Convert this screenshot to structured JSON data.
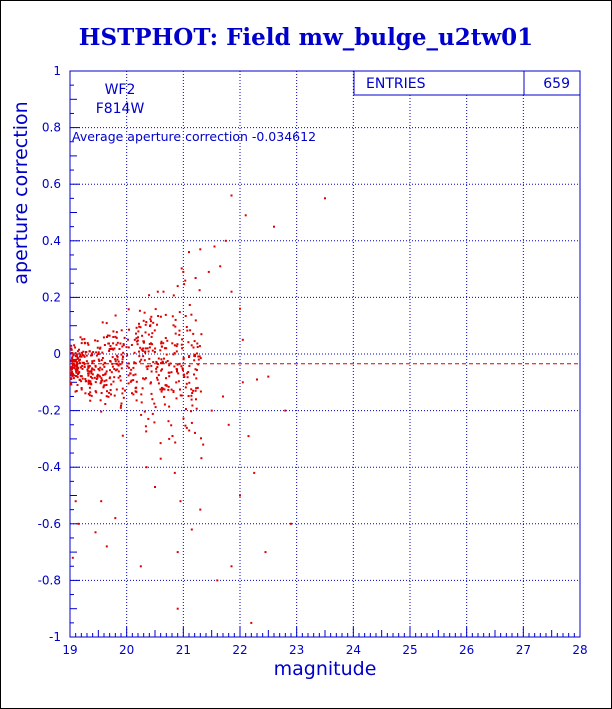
{
  "chart_data": {
    "type": "scatter",
    "title": "HSTPHOT: Field mw_bulge_u2tw01",
    "xlabel": "magnitude",
    "ylabel": "aperture correction",
    "xlim": [
      19,
      28
    ],
    "ylim": [
      -1,
      1
    ],
    "xticks": [
      "19",
      "20",
      "21",
      "22",
      "23",
      "24",
      "25",
      "26",
      "27",
      "28"
    ],
    "yticks": [
      "-1",
      "-0.8",
      "-0.6",
      "-0.4",
      "-0.2",
      "0",
      "0.2",
      "0.4",
      "0.6",
      "0.8",
      "1"
    ],
    "grid": true,
    "reference_line": {
      "y": -0.034612,
      "style": "dashed"
    },
    "annotations": {
      "chip": "WF2",
      "filter": "F814W",
      "average": "Average aperture correction -0.034612"
    },
    "stats_box": {
      "label": "ENTRIES",
      "value": "659"
    },
    "series": [
      {
        "color": "#dd0000",
        "points": [
          [
            21.85,
            0.56
          ],
          [
            23.5,
            0.55
          ],
          [
            22.6,
            0.45
          ],
          [
            22.1,
            0.49
          ],
          [
            21.3,
            0.37
          ],
          [
            21.55,
            0.38
          ],
          [
            21.75,
            0.4
          ],
          [
            21.1,
            0.36
          ],
          [
            21.65,
            0.31
          ],
          [
            21.45,
            0.29
          ],
          [
            21.0,
            0.29
          ],
          [
            20.9,
            0.24
          ],
          [
            20.55,
            0.22
          ],
          [
            20.65,
            0.22
          ],
          [
            21.85,
            0.22
          ],
          [
            22.0,
            0.16
          ],
          [
            22.05,
            0.05
          ],
          [
            22.05,
            -0.1
          ],
          [
            22.5,
            -0.08
          ],
          [
            22.3,
            -0.09
          ],
          [
            22.8,
            -0.2
          ],
          [
            22.15,
            -0.29
          ],
          [
            22.25,
            -0.42
          ],
          [
            22.0,
            -0.5
          ],
          [
            22.9,
            -0.6
          ],
          [
            22.45,
            -0.7
          ],
          [
            22.2,
            -0.95
          ],
          [
            21.85,
            -0.75
          ],
          [
            21.6,
            -0.8
          ],
          [
            21.15,
            -0.62
          ],
          [
            20.95,
            -0.52
          ],
          [
            20.9,
            -0.9
          ],
          [
            20.9,
            -0.7
          ],
          [
            20.5,
            -0.47
          ],
          [
            19.8,
            -0.58
          ],
          [
            19.55,
            -0.52
          ],
          [
            19.45,
            -0.63
          ],
          [
            19.65,
            -0.68
          ],
          [
            19.05,
            -0.72
          ],
          [
            20.25,
            -0.75
          ],
          [
            19.15,
            -0.6
          ],
          [
            19.1,
            -0.52
          ],
          [
            21.3,
            -0.55
          ],
          [
            21.35,
            -0.32
          ],
          [
            20.85,
            -0.42
          ],
          [
            20.6,
            -0.37
          ],
          [
            20.35,
            -0.4
          ],
          [
            20.75,
            -0.3
          ],
          [
            21.5,
            -0.2
          ],
          [
            21.7,
            -0.15
          ],
          [
            21.8,
            -0.25
          ]
        ]
      }
    ]
  }
}
